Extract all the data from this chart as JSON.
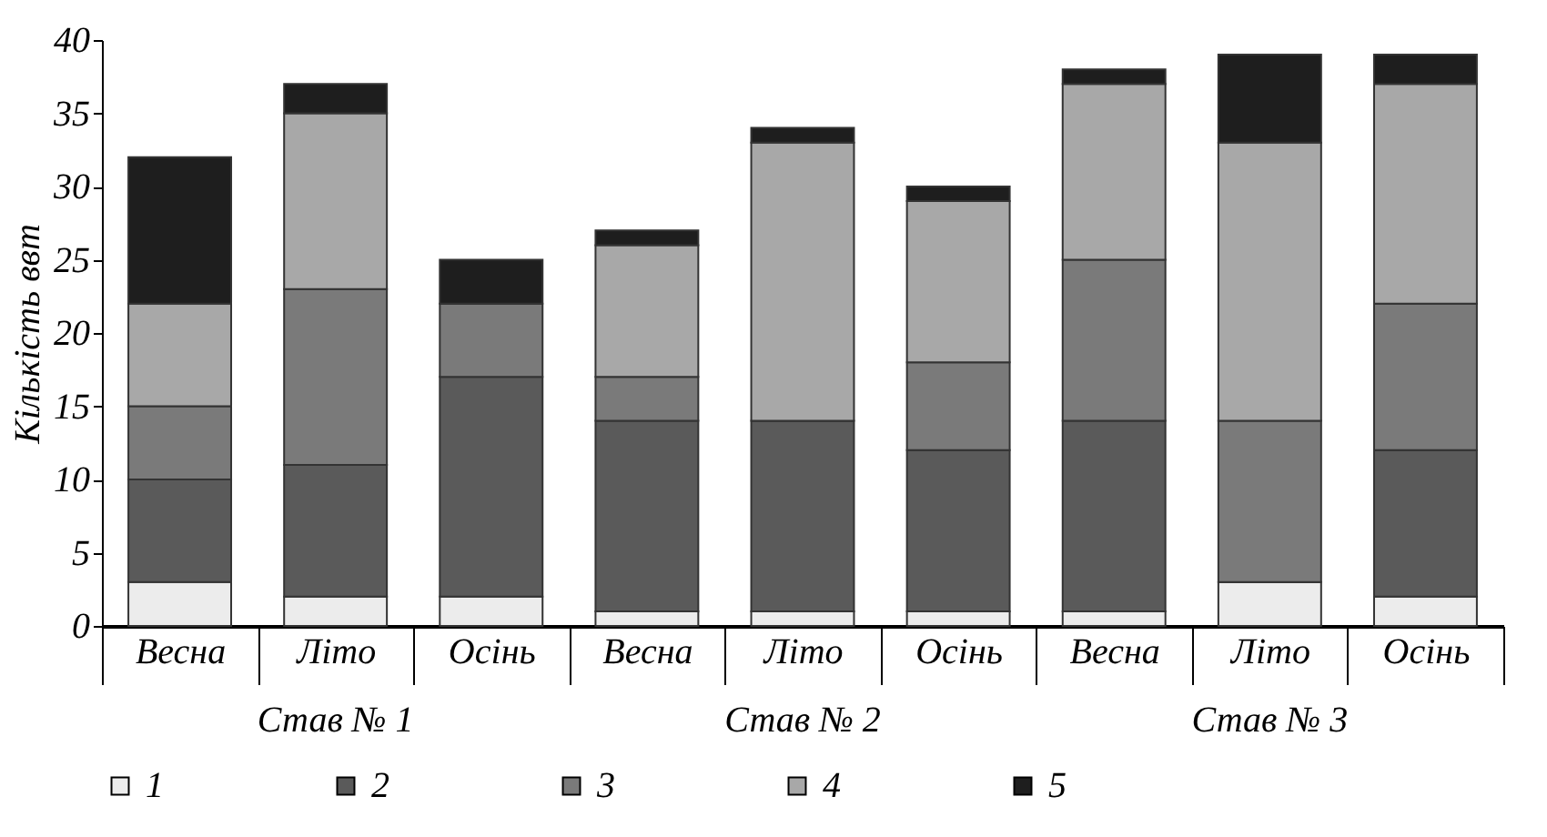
{
  "chart_data": {
    "type": "bar",
    "stacked": true,
    "ylabel": "Кількість ввт",
    "categories": [
      "Весна",
      "Літо",
      "Осінь",
      "Весна",
      "Літо",
      "Осінь",
      "Весна",
      "Літо",
      "Осінь"
    ],
    "annotations": [
      "Став № 1",
      "Став № 2",
      "Став № 3"
    ],
    "series": [
      {
        "name": "1",
        "color": "#ececec",
        "values": [
          3,
          2,
          2,
          1,
          1,
          1,
          1,
          3,
          2
        ]
      },
      {
        "name": "2",
        "color": "#5a5a5a",
        "values": [
          7,
          9,
          15,
          13,
          13,
          11,
          13,
          0,
          10
        ]
      },
      {
        "name": "3",
        "color": "#7a7a7a",
        "values": [
          5,
          12,
          5,
          3,
          0,
          6,
          11,
          11,
          10
        ]
      },
      {
        "name": "4",
        "color": "#a8a8a8",
        "values": [
          7,
          12,
          0,
          9,
          19,
          11,
          12,
          19,
          15
        ]
      },
      {
        "name": "5",
        "color": "#1e1e1e",
        "values": [
          10,
          2,
          3,
          1,
          1,
          1,
          1,
          6,
          2
        ]
      }
    ],
    "ylim": [
      0,
      40
    ],
    "yticks": [
      0,
      5,
      10,
      15,
      20,
      25,
      30,
      35,
      40
    ],
    "grid": false,
    "legend": "bottom"
  }
}
